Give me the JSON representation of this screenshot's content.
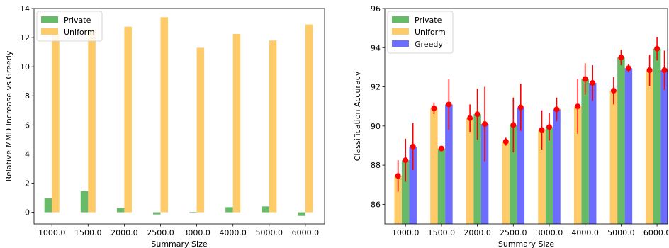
{
  "chart_data": [
    {
      "type": "bar",
      "xlabel": "Summary Size",
      "ylabel": "Relative MMD Increase vs Greedy",
      "categories": [
        "1000.0",
        "1500.0",
        "2000.0",
        "2500.0",
        "3000.0",
        "4000.0",
        "5000.0",
        "6000.0"
      ],
      "series": [
        {
          "name": "Private",
          "color": "#2ca02c",
          "values": [
            0.95,
            1.45,
            0.28,
            -0.15,
            0.03,
            0.35,
            0.4,
            -0.25
          ]
        },
        {
          "name": "Uniform",
          "color": "#ffb52e",
          "values": [
            12.3,
            12.5,
            12.75,
            13.4,
            11.3,
            12.25,
            11.8,
            12.9
          ]
        }
      ],
      "ylim": [
        -0.8,
        14
      ],
      "yticks": [
        "0",
        "2",
        "4",
        "6",
        "8",
        "10",
        "12",
        "14"
      ],
      "legend": "top-left"
    },
    {
      "type": "bar",
      "xlabel": "Summary Size",
      "ylabel": "Classification Accuracy",
      "categories": [
        "1000.0",
        "1500.0",
        "2000.0",
        "2500.0",
        "3000.0",
        "4000.0",
        "5000.0",
        "6000.0"
      ],
      "series": [
        {
          "name": "Private",
          "color": "#2ca02c",
          "values": [
            88.25,
            88.85,
            90.6,
            90.05,
            89.95,
            92.4,
            93.5,
            93.95
          ],
          "error": [
            1.1,
            0.1,
            1.3,
            1.4,
            0.7,
            0.8,
            0.4,
            0.6
          ]
        },
        {
          "name": "Uniform",
          "color": "#ffb52e",
          "values": [
            87.45,
            90.9,
            90.4,
            89.2,
            89.8,
            91.0,
            91.8,
            92.85
          ],
          "error": [
            0.8,
            0.3,
            0.7,
            0.2,
            1.0,
            1.4,
            0.7,
            0.8
          ]
        },
        {
          "name": "Greedy",
          "color": "#3333ff",
          "values": [
            88.95,
            91.1,
            90.1,
            90.95,
            90.85,
            92.2,
            92.95,
            92.85
          ],
          "error": [
            1.2,
            1.3,
            1.9,
            1.2,
            0.6,
            0.9,
            0.2,
            1.0
          ]
        }
      ],
      "ylim": [
        85.0,
        96
      ],
      "yticks": [
        "86",
        "88",
        "90",
        "92",
        "94",
        "96"
      ],
      "legend": "top-left"
    }
  ]
}
